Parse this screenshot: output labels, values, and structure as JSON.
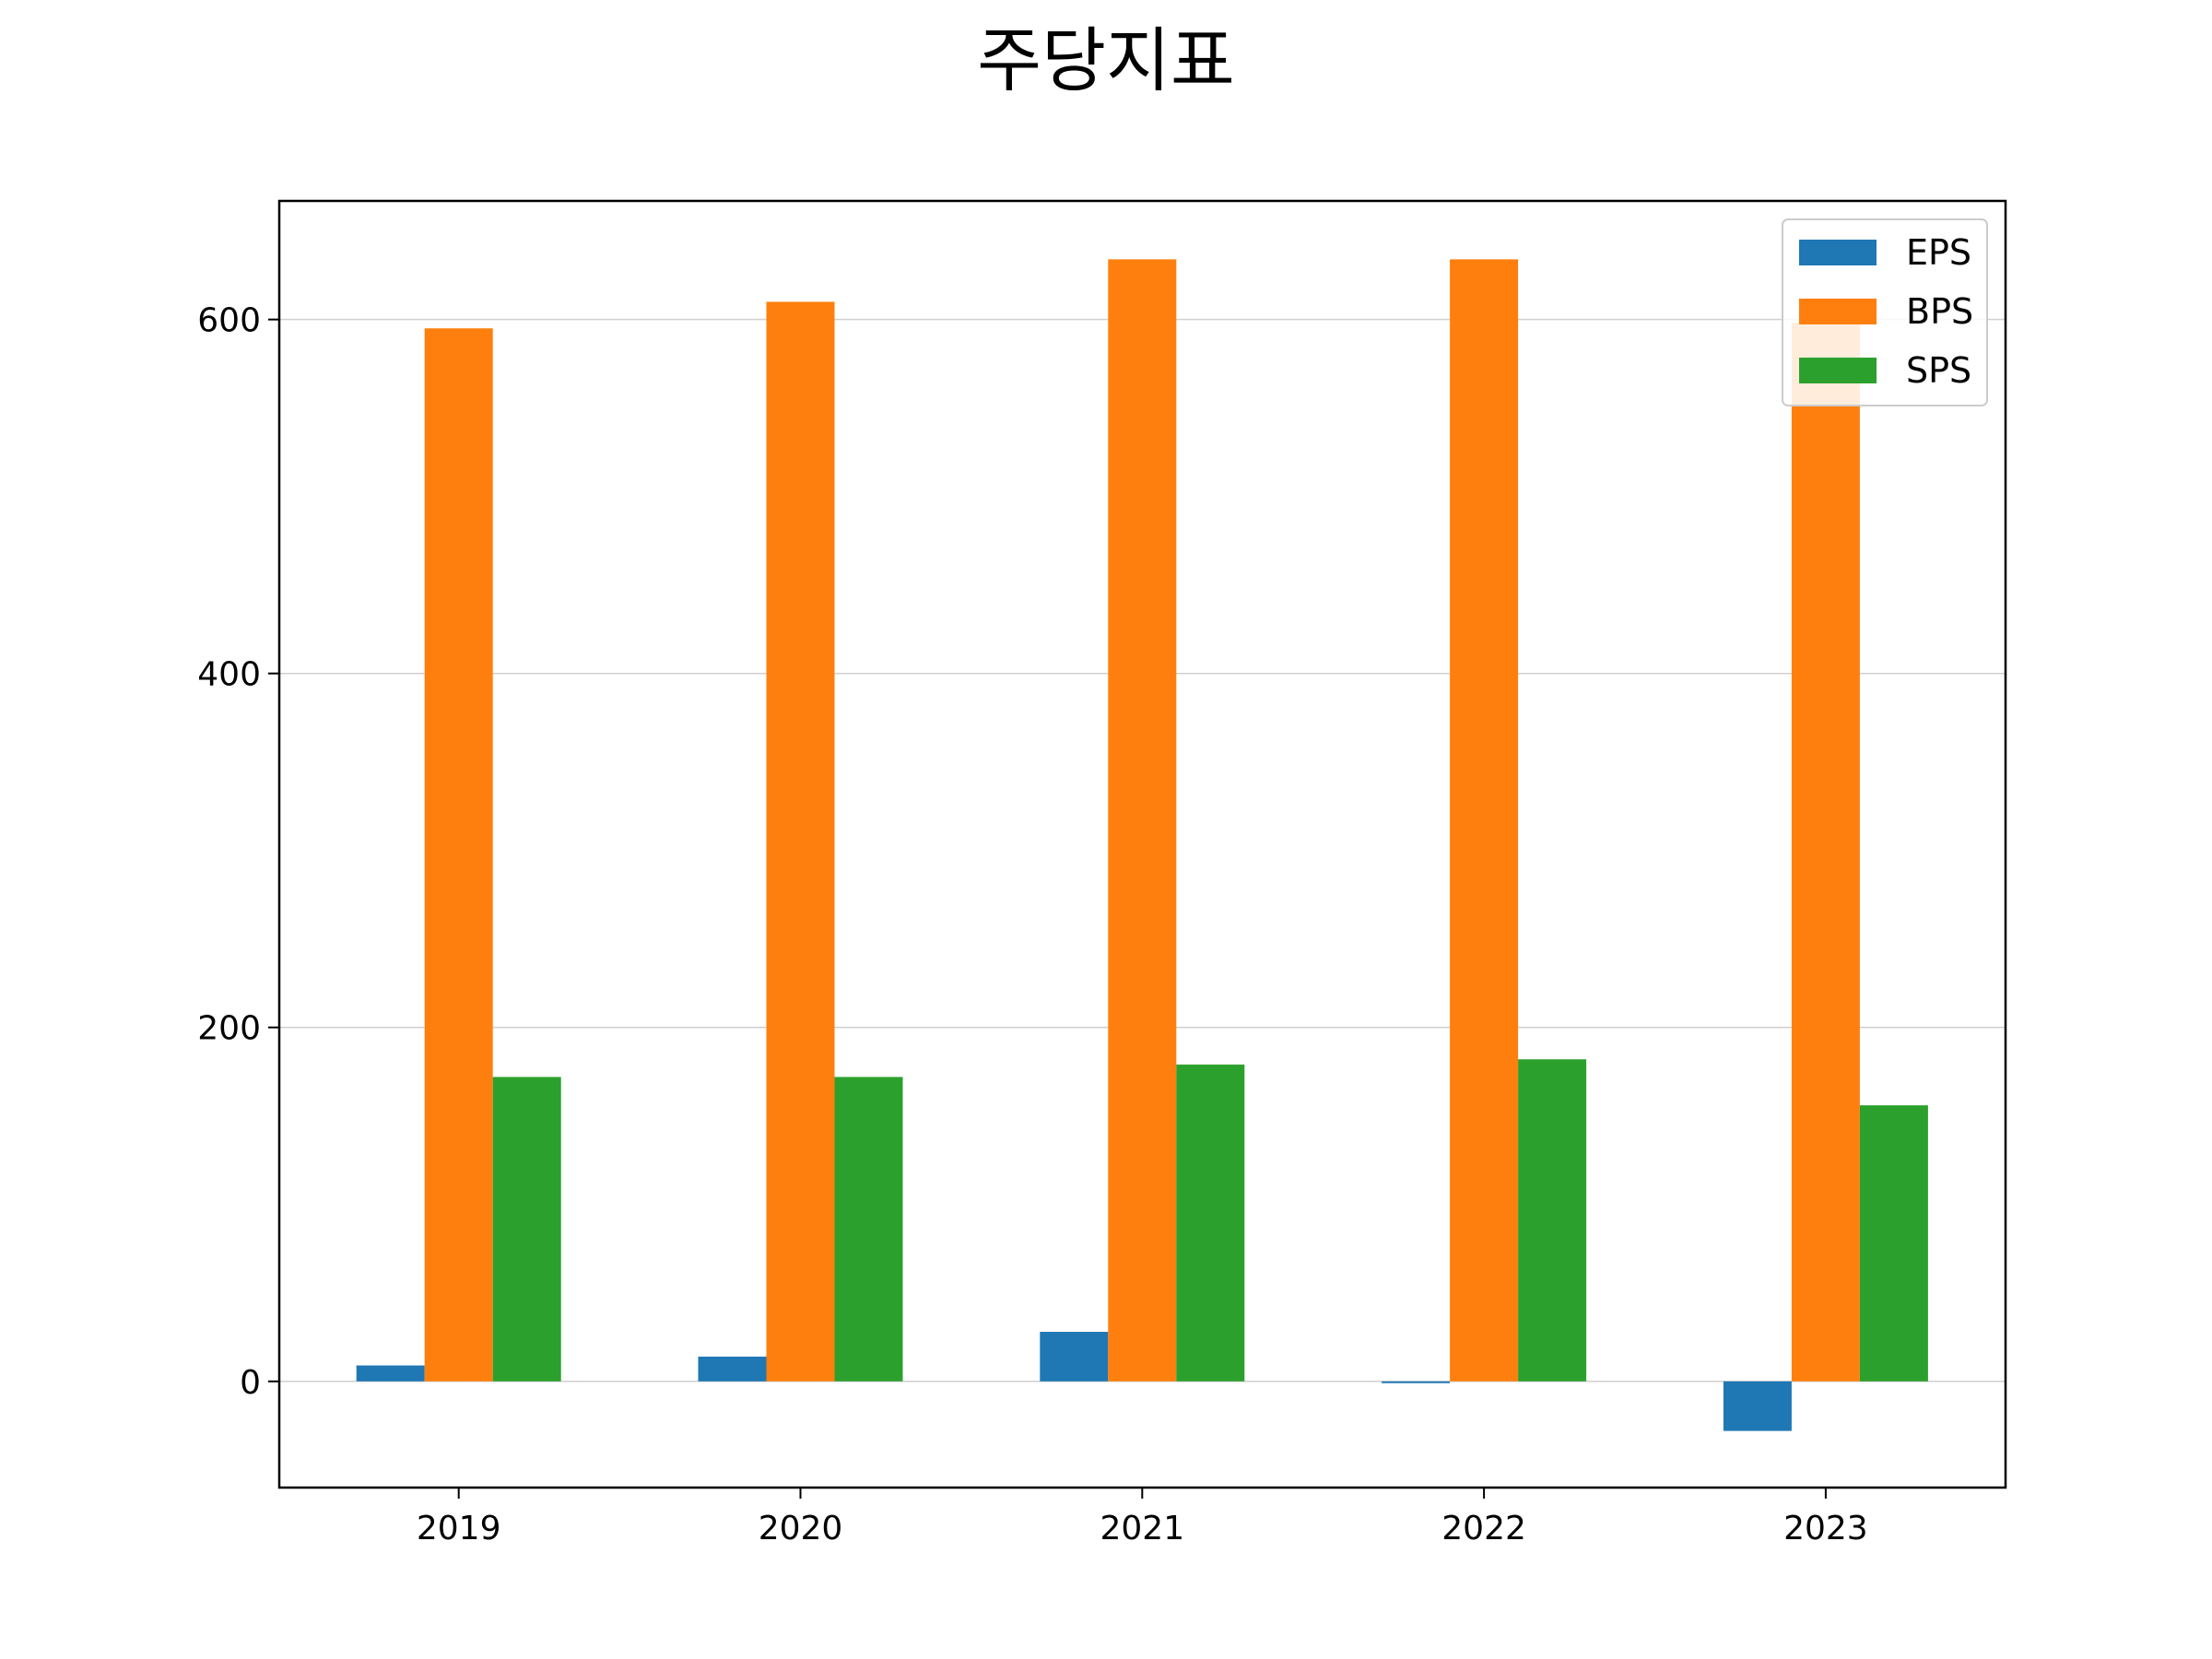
{
  "chart_data": {
    "type": "bar",
    "title": "주당지표",
    "xlabel": "",
    "ylabel": "",
    "categories": [
      "2019",
      "2020",
      "2021",
      "2022",
      "2023"
    ],
    "series": [
      {
        "name": "EPS",
        "values": [
          9,
          14,
          28,
          -1,
          -28
        ],
        "color": "#1f77b4"
      },
      {
        "name": "BPS",
        "values": [
          595,
          610,
          634,
          634,
          598
        ],
        "color": "#ff7f0e"
      },
      {
        "name": "SPS",
        "values": [
          172,
          172,
          179,
          182,
          156
        ],
        "color": "#2ca02c"
      }
    ],
    "ylim": [
      -60,
      667
    ],
    "yticks": [
      0,
      200,
      400,
      600
    ],
    "grid": "y",
    "legend": "top-right"
  }
}
